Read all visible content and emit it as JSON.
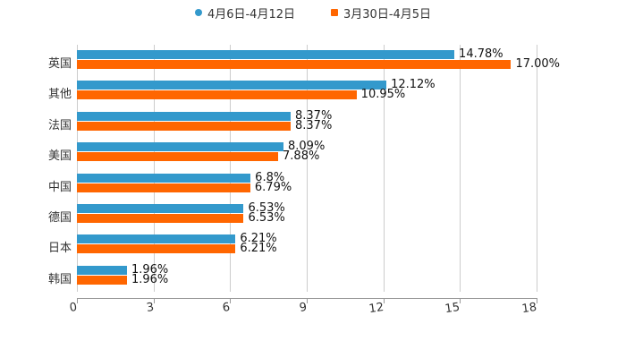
{
  "chart_data": {
    "type": "bar",
    "orientation": "horizontal",
    "title": "",
    "xlabel": "",
    "ylabel": "",
    "xlim": [
      0,
      18
    ],
    "xticks": [
      "0",
      "3",
      "6",
      "9",
      "12",
      "15",
      "18"
    ],
    "grid": true,
    "legend_position": "top",
    "categories": [
      "英国",
      "其他",
      "法国",
      "美国",
      "中国",
      "德国",
      "日本",
      "韩国"
    ],
    "series": [
      {
        "name": "4月6日-4月12日",
        "color": "#3399cc",
        "values": [
          14.78,
          12.12,
          8.37,
          8.09,
          6.8,
          6.53,
          6.21,
          1.96
        ],
        "labels": [
          "14.78%",
          "12.12%",
          "8.37%",
          "8.09%",
          "6.8%",
          "6.53%",
          "6.21%",
          "1.96%"
        ]
      },
      {
        "name": "3月30日-4月5日",
        "color": "#ff6600",
        "values": [
          17.0,
          10.95,
          8.37,
          7.88,
          6.79,
          6.53,
          6.21,
          1.96
        ],
        "labels": [
          "17.00%",
          "10.95%",
          "8.37%",
          "7.88%",
          "6.79%",
          "6.53%",
          "6.21%",
          "1.96%"
        ]
      }
    ]
  }
}
